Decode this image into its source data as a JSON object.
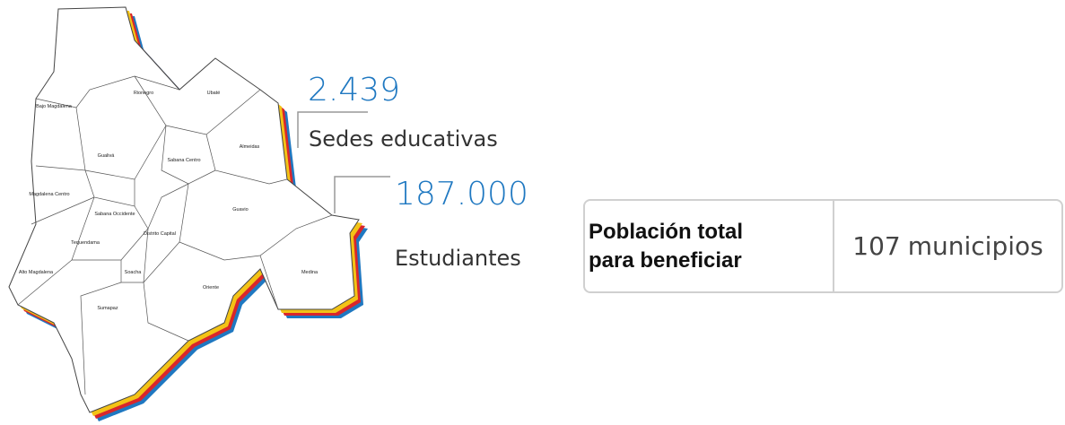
{
  "stats": [
    {
      "value": "2.439",
      "label": "Sedes educativas"
    },
    {
      "value": "187.000",
      "label": "Estudiantes"
    }
  ],
  "regions": [
    "Bajo Magdalena",
    "Rionegro",
    "Ubaté",
    "Almeidas",
    "Gualivá",
    "Sabana Centro",
    "Magdalena Centro",
    "Sabana Occidente",
    "Guavio",
    "Tequendama",
    "Distrito Capital",
    "Soacha",
    "Alto Magdalena",
    "Oriente",
    "Medina",
    "Sumapaz"
  ],
  "table": {
    "label_lines": [
      "Población total",
      "para beneficiar"
    ],
    "number": "107",
    "unit": "municipios"
  }
}
